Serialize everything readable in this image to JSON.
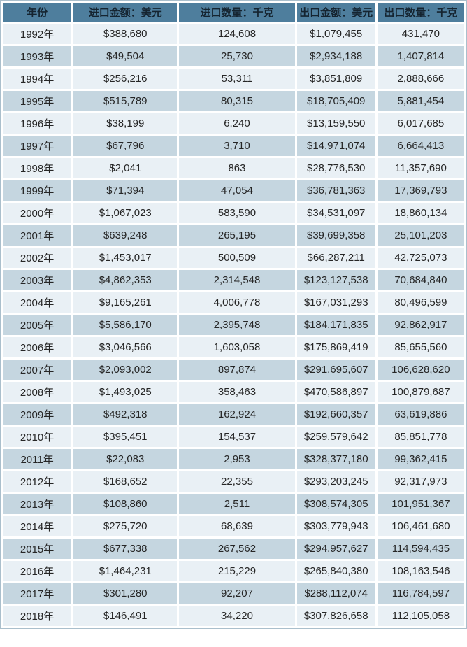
{
  "colors": {
    "header_bg": "#4e7e9d",
    "header_text": "#152430",
    "row_light": "#e9f0f5",
    "row_dark": "#c5d6e0",
    "cell_text": "#262626",
    "grid_gap": "#ffffff"
  },
  "chart_data": {
    "type": "table",
    "columns": [
      "年份",
      "进口金额：美元",
      "进口数量：千克",
      "出口金额：美元",
      "出口数量：千克"
    ],
    "rows": [
      [
        "1992年",
        "$388,680",
        "124,608",
        "$1,079,455",
        "431,470"
      ],
      [
        "1993年",
        "$49,504",
        "25,730",
        "$2,934,188",
        "1,407,814"
      ],
      [
        "1994年",
        "$256,216",
        "53,311",
        "$3,851,809",
        "2,888,666"
      ],
      [
        "1995年",
        "$515,789",
        "80,315",
        "$18,705,409",
        "5,881,454"
      ],
      [
        "1996年",
        "$38,199",
        "6,240",
        "$13,159,550",
        "6,017,685"
      ],
      [
        "1997年",
        "$67,796",
        "3,710",
        "$14,971,074",
        "6,664,413"
      ],
      [
        "1998年",
        "$2,041",
        "863",
        "$28,776,530",
        "11,357,690"
      ],
      [
        "1999年",
        "$71,394",
        "47,054",
        "$36,781,363",
        "17,369,793"
      ],
      [
        "2000年",
        "$1,067,023",
        "583,590",
        "$34,531,097",
        "18,860,134"
      ],
      [
        "2001年",
        "$639,248",
        "265,195",
        "$39,699,358",
        "25,101,203"
      ],
      [
        "2002年",
        "$1,453,017",
        "500,509",
        "$66,287,211",
        "42,725,073"
      ],
      [
        "2003年",
        "$4,862,353",
        "2,314,548",
        "$123,127,538",
        "70,684,840"
      ],
      [
        "2004年",
        "$9,165,261",
        "4,006,778",
        "$167,031,293",
        "80,496,599"
      ],
      [
        "2005年",
        "$5,586,170",
        "2,395,748",
        "$184,171,835",
        "92,862,917"
      ],
      [
        "2006年",
        "$3,046,566",
        "1,603,058",
        "$175,869,419",
        "85,655,560"
      ],
      [
        "2007年",
        "$2,093,002",
        "897,874",
        "$291,695,607",
        "106,628,620"
      ],
      [
        "2008年",
        "$1,493,025",
        "358,463",
        "$470,586,897",
        "100,879,687"
      ],
      [
        "2009年",
        "$492,318",
        "162,924",
        "$192,660,357",
        "63,619,886"
      ],
      [
        "2010年",
        "$395,451",
        "154,537",
        "$259,579,642",
        "85,851,778"
      ],
      [
        "2011年",
        "$22,083",
        "2,953",
        "$328,377,180",
        "99,362,415"
      ],
      [
        "2012年",
        "$168,652",
        "22,355",
        "$293,203,245",
        "92,317,973"
      ],
      [
        "2013年",
        "$108,860",
        "2,511",
        "$308,574,305",
        "101,951,367"
      ],
      [
        "2014年",
        "$275,720",
        "68,639",
        "$303,779,943",
        "106,461,680"
      ],
      [
        "2015年",
        "$677,338",
        "267,562",
        "$294,957,627",
        "114,594,435"
      ],
      [
        "2016年",
        "$1,464,231",
        "215,229",
        "$265,840,380",
        "108,163,546"
      ],
      [
        "2017年",
        "$301,280",
        "92,207",
        "$288,112,074",
        "116,784,597"
      ],
      [
        "2018年",
        "$146,491",
        "34,220",
        "$307,826,658",
        "112,105,058"
      ]
    ]
  }
}
